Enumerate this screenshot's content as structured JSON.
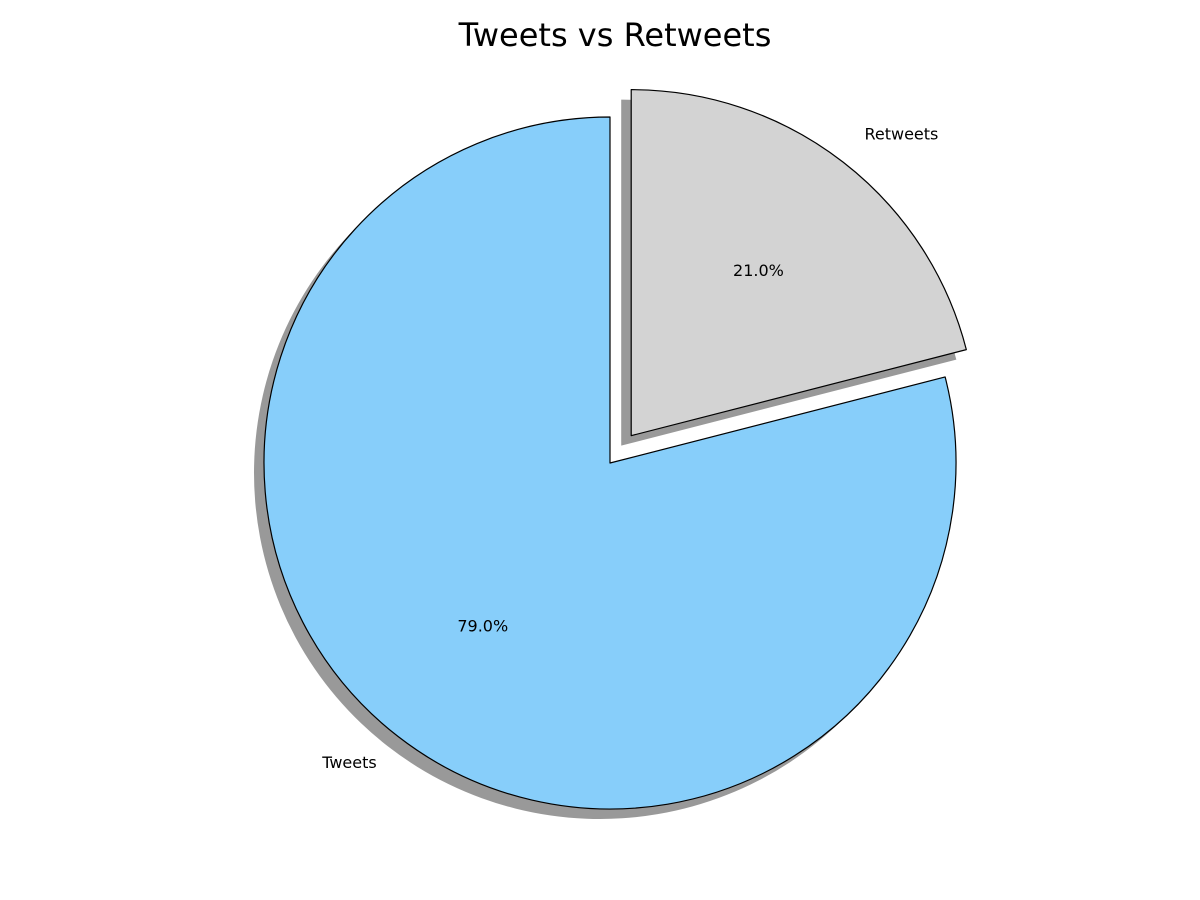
{
  "chart_data": {
    "type": "pie",
    "title": "Tweets vs Retweets",
    "slices": [
      {
        "label": "Tweets",
        "value": 79.0,
        "pct_label": "79.0%",
        "color": "#87cefa",
        "exploded": false
      },
      {
        "label": "Retweets",
        "value": 21.0,
        "pct_label": "21.0%",
        "color": "#d3d3d3",
        "exploded": true
      }
    ],
    "start_angle_deg": 90,
    "direction": "counterclockwise",
    "shadow": true,
    "edge_color": "#000000"
  }
}
